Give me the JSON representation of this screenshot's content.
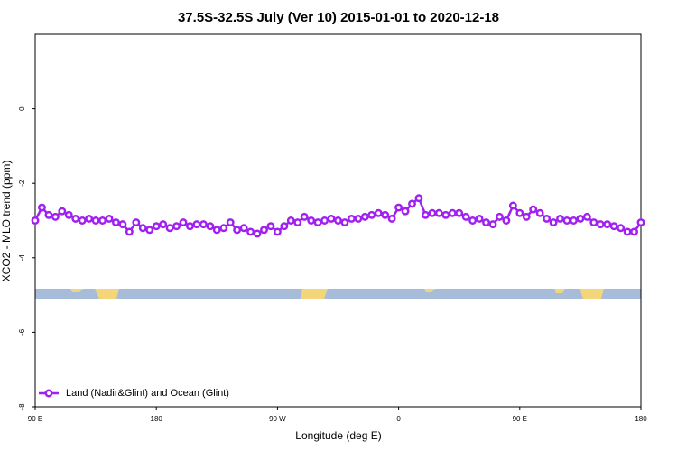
{
  "chart_data": {
    "type": "line",
    "title": "37.5S-32.5S July (Ver 10)   2015-01-01 to 2020-12-18",
    "x_label": "Longitude (deg E)",
    "y_label": "XCO2 - MLO trend (ppm)",
    "x": [
      90,
      95,
      100,
      105,
      110,
      115,
      120,
      125,
      130,
      135,
      140,
      145,
      150,
      155,
      160,
      165,
      170,
      175,
      180,
      185,
      190,
      195,
      200,
      205,
      210,
      215,
      220,
      225,
      230,
      235,
      240,
      245,
      250,
      255,
      260,
      265,
      270,
      275,
      280,
      285,
      290,
      295,
      300,
      305,
      310,
      315,
      320,
      325,
      330,
      335,
      340,
      345,
      350,
      355,
      360,
      365,
      370,
      375,
      380,
      385,
      390,
      395,
      400,
      405,
      410,
      415,
      420,
      425,
      430,
      435,
      440,
      445,
      450,
      455,
      460,
      465,
      470,
      475,
      480,
      485,
      490,
      495,
      500,
      505,
      510,
      515,
      520,
      525,
      530,
      535,
      540
    ],
    "series": [
      {
        "name": "Land (Nadir&Glint) and Ocean (Glint)",
        "color": "#a020f0",
        "values": [
          -3.0,
          -2.65,
          -2.85,
          -2.9,
          -2.75,
          -2.85,
          -2.95,
          -3.0,
          -2.95,
          -3.0,
          -3.0,
          -2.95,
          -3.05,
          -3.1,
          -3.3,
          -3.05,
          -3.2,
          -3.25,
          -3.15,
          -3.1,
          -3.2,
          -3.15,
          -3.05,
          -3.15,
          -3.1,
          -3.1,
          -3.15,
          -3.25,
          -3.2,
          -3.05,
          -3.25,
          -3.2,
          -3.3,
          -3.35,
          -3.25,
          -3.15,
          -3.3,
          -3.15,
          -3.0,
          -3.05,
          -2.9,
          -3.0,
          -3.05,
          -3.0,
          -2.95,
          -3.0,
          -3.05,
          -2.95,
          -2.95,
          -2.9,
          -2.85,
          -2.8,
          -2.85,
          -2.95,
          -2.65,
          -2.75,
          -2.55,
          -2.4,
          -2.85,
          -2.8,
          -2.8,
          -2.85,
          -2.8,
          -2.8,
          -2.9,
          -3.0,
          -2.95,
          -3.05,
          -3.1,
          -2.9,
          -3.0,
          -2.6,
          -2.8,
          -2.9,
          -2.7,
          -2.8,
          -2.95,
          -3.05,
          -2.95,
          -3.0,
          -3.0,
          -2.95,
          -2.9,
          -3.05,
          -3.1,
          -3.1,
          -3.15,
          -3.2,
          -3.3,
          -3.3,
          -3.05
        ]
      }
    ],
    "xlim": [
      90,
      540
    ],
    "xticks": [
      {
        "value": 90,
        "label": "90 E"
      },
      180,
      {
        "value": 270,
        "label": "90 W"
      },
      {
        "value": 360,
        "label": "0"
      },
      {
        "value": 450,
        "label": "90 E"
      },
      {
        "value": 540,
        "label": "180"
      }
    ],
    "ylim": [
      -8,
      2
    ],
    "yticks": [
      -8,
      -6,
      -4,
      -2,
      0
    ],
    "legend": "lower left"
  }
}
